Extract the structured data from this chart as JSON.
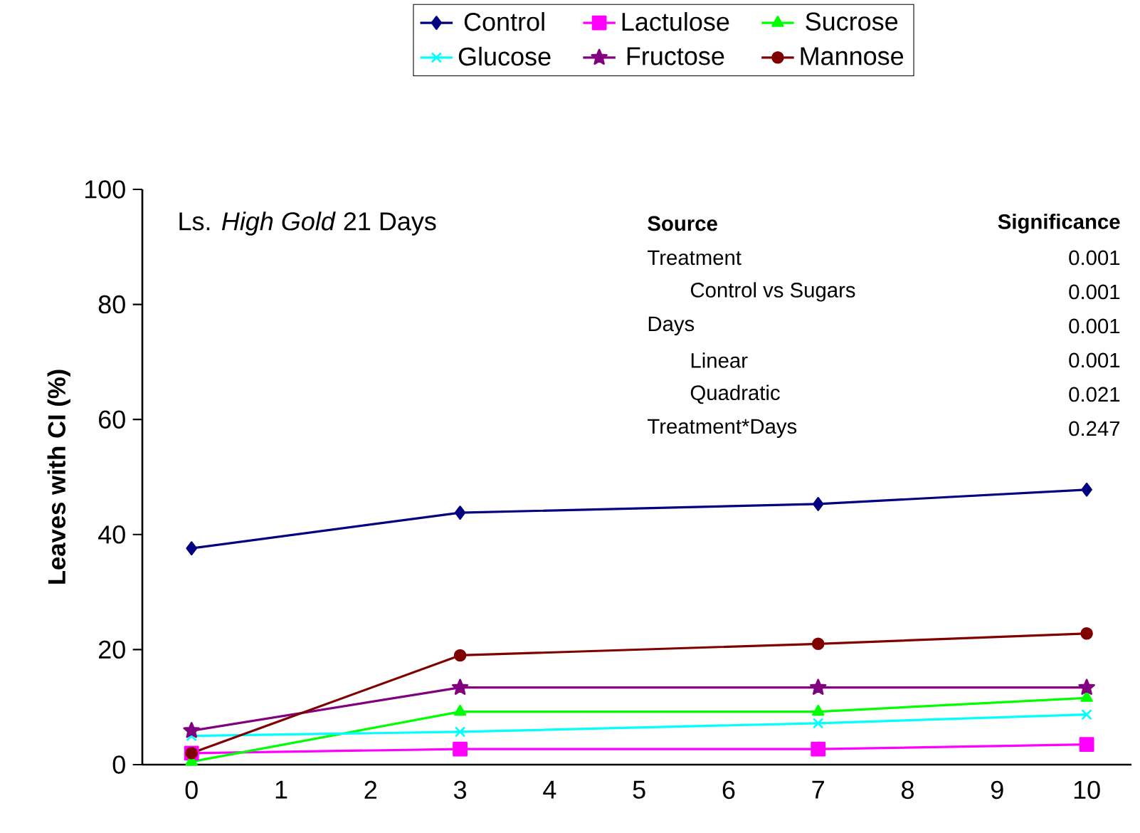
{
  "chart_data": {
    "type": "line",
    "ylabel": "Leaves with CI (%)",
    "x": [
      0,
      3,
      7,
      10
    ],
    "xlim": [
      -0.55,
      10.5
    ],
    "xticks": [
      0,
      1,
      2,
      3,
      4,
      5,
      6,
      7,
      8,
      9,
      10
    ],
    "ylim": [
      0,
      100
    ],
    "yticks": [
      0,
      20,
      40,
      60,
      80,
      100
    ],
    "legend": "top",
    "grid": false,
    "line_style": "solid",
    "series": [
      {
        "name": "Control",
        "color": "#000080",
        "marker": "diamond",
        "values": [
          37.6,
          43.8,
          45.3,
          47.8
        ]
      },
      {
        "name": "Lactulose",
        "color": "#ff00ff",
        "marker": "square",
        "values": [
          2,
          2.7,
          2.7,
          3.5
        ]
      },
      {
        "name": "Sucrose",
        "color": "#00ff00",
        "marker": "triangle",
        "values": [
          0.5,
          9.2,
          9.2,
          11.6
        ]
      },
      {
        "name": "Glucose",
        "color": "#00ffff",
        "marker": "cross",
        "values": [
          5,
          5.7,
          7.2,
          8.7
        ]
      },
      {
        "name": "Fructose",
        "color": "#800080",
        "marker": "star",
        "values": [
          5.9,
          13.4,
          13.4,
          13.4
        ]
      },
      {
        "name": "Mannose",
        "color": "#800000",
        "marker": "circle",
        "values": [
          2,
          19,
          21,
          22.8
        ]
      }
    ],
    "annotations": [
      "Ls. *High Gold* 21 Days",
      "Source",
      "Significance",
      "Treatment",
      "0.001",
      "Control vs Sugars",
      "0.001",
      "Days",
      "0.001",
      "Linear",
      "0.001",
      "Quadratic",
      "0.021",
      "Treatment*Days",
      "0.247"
    ]
  }
}
